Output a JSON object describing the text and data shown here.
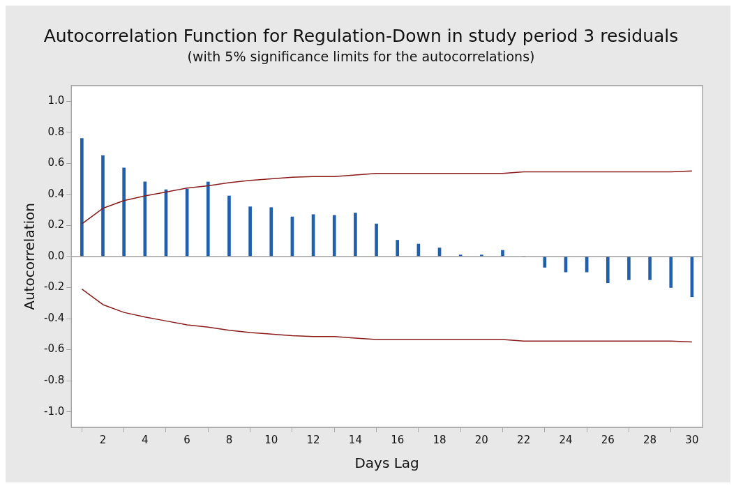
{
  "chart_data": {
    "type": "bar",
    "title": "Autocorrelation Function for Regulation-Down in study period 3 residuals",
    "subtitle": "(with 5% significance limits for the autocorrelations)",
    "xlabel": "Days Lag",
    "ylabel": "Autocorrelation",
    "x": [
      1,
      2,
      3,
      4,
      5,
      6,
      7,
      8,
      9,
      10,
      11,
      12,
      13,
      14,
      15,
      16,
      17,
      18,
      19,
      20,
      21,
      22,
      23,
      24,
      25,
      26,
      27,
      28,
      29,
      30
    ],
    "series": [
      {
        "color": "#1f5fb0",
        "values": [
          0.76,
          0.65,
          0.57,
          0.48,
          0.43,
          0.435,
          0.48,
          0.39,
          0.32,
          0.315,
          0.255,
          0.27,
          0.265,
          0.28,
          0.21,
          0.105,
          0.08,
          0.055,
          0.01,
          0.01,
          0.04,
          0,
          -0.07,
          -0.1,
          -0.1,
          -0.17,
          -0.15,
          -0.15,
          -0.2,
          -0.26
        ]
      },
      {
        "type": "line",
        "color": "#8b1a1a",
        "values": [
          0.21,
          0.31,
          0.36,
          0.39,
          0.415,
          0.44,
          0.455,
          0.475,
          0.49,
          0.5,
          0.51,
          0.515,
          0.515,
          0.525,
          0.535,
          0.535,
          0.535,
          0.535,
          0.535,
          0.535,
          0.535,
          0.545,
          0.545,
          0.545,
          0.545,
          0.545,
          0.545,
          0.545,
          0.545,
          0.55
        ]
      },
      {
        "type": "line",
        "color": "#8b1a1a",
        "values": [
          -0.21,
          -0.31,
          -0.36,
          -0.39,
          -0.415,
          -0.44,
          -0.455,
          -0.475,
          -0.49,
          -0.5,
          -0.51,
          -0.515,
          -0.515,
          -0.525,
          -0.535,
          -0.535,
          -0.535,
          -0.535,
          -0.535,
          -0.535,
          -0.535,
          -0.545,
          -0.545,
          -0.545,
          -0.545,
          -0.545,
          -0.545,
          -0.545,
          -0.545,
          -0.55
        ]
      }
    ],
    "xlim": [
      0.5,
      30.5
    ],
    "xticks": [
      2,
      4,
      6,
      8,
      10,
      12,
      14,
      16,
      18,
      20,
      22,
      24,
      26,
      28,
      30
    ],
    "ylim": [
      -1.1,
      1.1
    ],
    "yticks": [
      {
        "value": -1,
        "label": "-1.0"
      },
      {
        "value": -0.8,
        "label": "-0.8"
      },
      {
        "value": -0.6,
        "label": "-0.6"
      },
      {
        "value": -0.4,
        "label": "-0.4"
      },
      {
        "value": -0.2,
        "label": "-0.2"
      },
      {
        "value": 0,
        "label": "0.0"
      },
      {
        "value": 0.2,
        "label": "0.2"
      },
      {
        "value": 0.4,
        "label": "0.4"
      },
      {
        "value": 0.6,
        "label": "0.6"
      },
      {
        "value": 0.8,
        "label": "0.8"
      },
      {
        "value": 1,
        "label": "1.0"
      }
    ],
    "ref_lines": [
      {
        "axis": "y",
        "value": 0,
        "color": "#a0a0a0"
      }
    ],
    "grid": false,
    "legend": false,
    "marker": "none",
    "line_style": "solid"
  }
}
